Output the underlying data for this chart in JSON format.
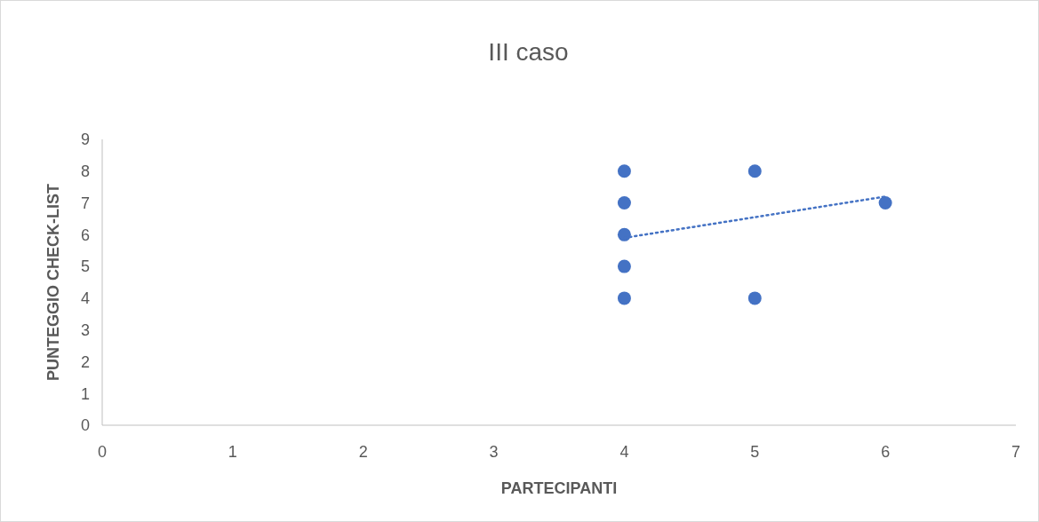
{
  "chart_data": {
    "type": "scatter",
    "title": "III caso",
    "xlabel": "PARTECIPANTI",
    "ylabel": "PUNTEGGIO CHECK-LIST",
    "xlim": [
      0,
      7
    ],
    "xticks": [
      0,
      1,
      2,
      3,
      4,
      5,
      6,
      7
    ],
    "ylim": [
      0,
      9
    ],
    "yticks": [
      0,
      1,
      2,
      3,
      4,
      5,
      6,
      7,
      8,
      9
    ],
    "grid": false,
    "series": [
      {
        "color": "#4472c4",
        "marker": "circle",
        "x": [
          4,
          4,
          4,
          4,
          4,
          5,
          5,
          6
        ],
        "values": [
          8,
          7,
          6,
          5,
          4,
          8,
          4,
          7
        ]
      },
      {
        "type": "line",
        "color": "#4472c4",
        "line_style": "dotted",
        "marker": "none",
        "x": [
          4,
          6
        ],
        "values": [
          5.9,
          7.2
        ]
      }
    ]
  }
}
